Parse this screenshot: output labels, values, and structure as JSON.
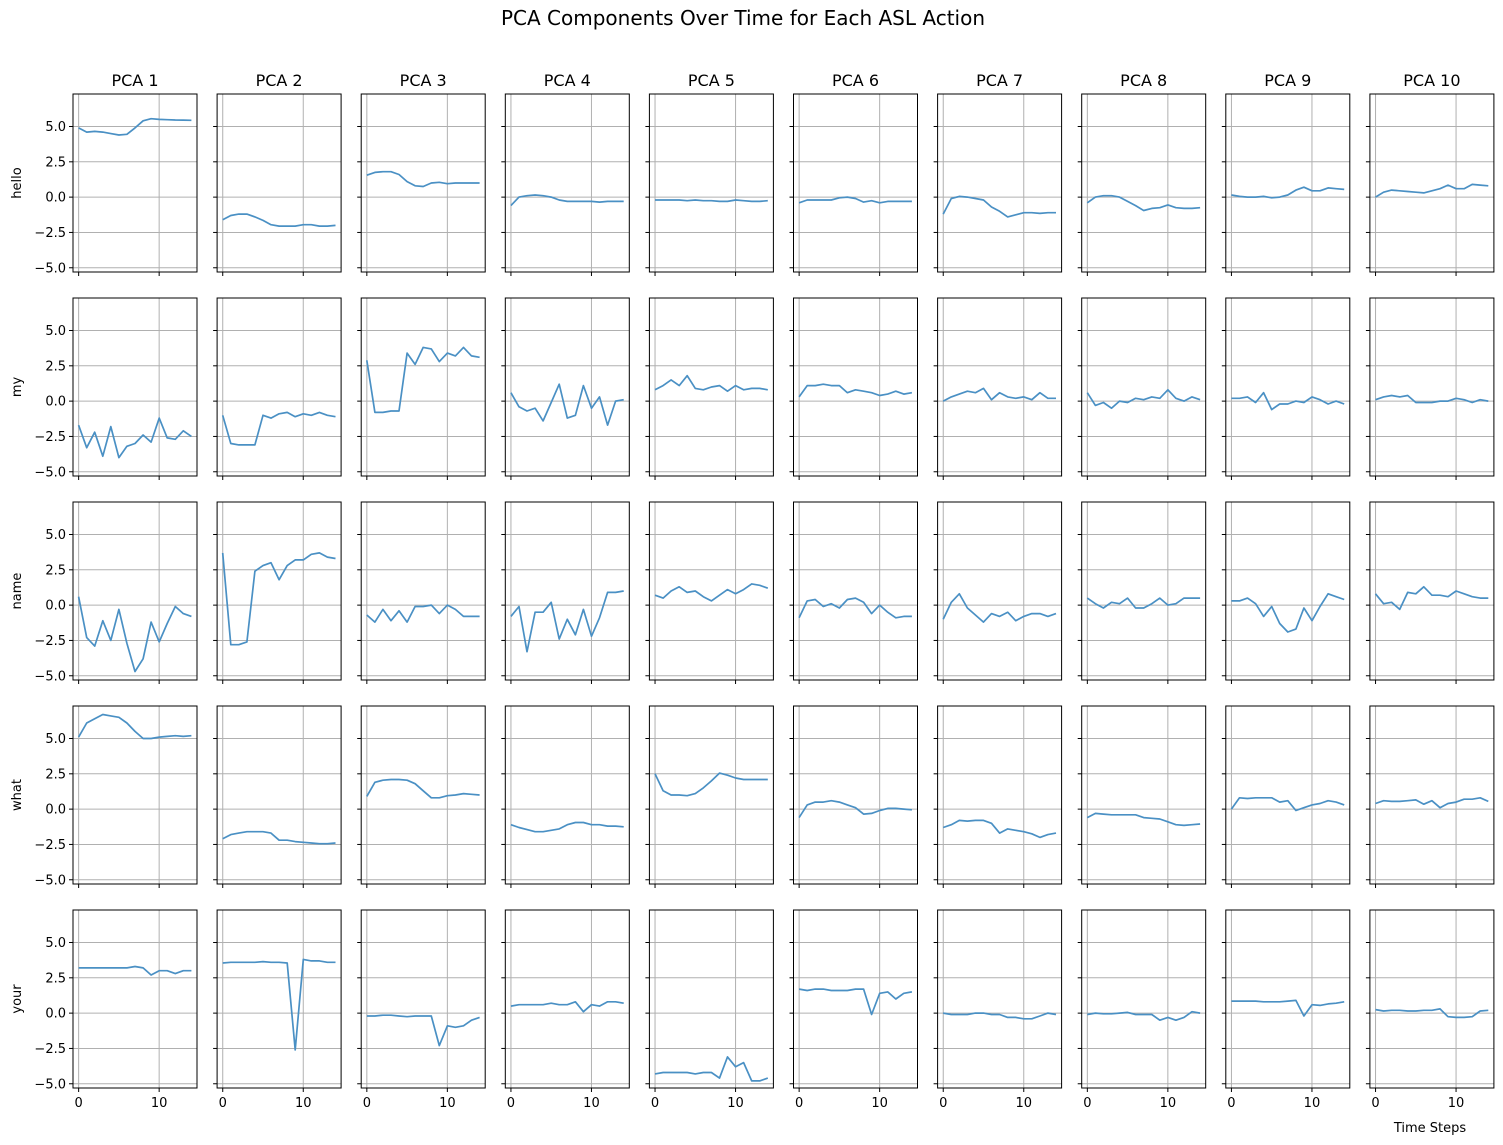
{
  "chart_data": {
    "type": "line",
    "title": "PCA Components Over Time for Each ASL Action",
    "xlabel": "Time Steps",
    "columns": [
      "PCA 1",
      "PCA 2",
      "PCA 3",
      "PCA 4",
      "PCA 5",
      "PCA 6",
      "PCA 7",
      "PCA 8",
      "PCA 9",
      "PCA 10"
    ],
    "rows": [
      "hello",
      "my",
      "name",
      "what",
      "your"
    ],
    "x": [
      0,
      1,
      2,
      3,
      4,
      5,
      6,
      7,
      8,
      9,
      10,
      11,
      12,
      13,
      14
    ],
    "xlim": [
      -0.7,
      14.7
    ],
    "ylim": [
      -5.3,
      7.3
    ],
    "xticks": [
      0,
      10
    ],
    "xtick_labels": [
      "0",
      "10"
    ],
    "yticks": [
      -5,
      -2.5,
      0,
      2.5,
      5
    ],
    "ytick_labels": [
      "−5.0",
      "−2.5",
      "0.0",
      "2.5",
      "5.0"
    ],
    "grid": true,
    "line_color": "#4a90c4",
    "values": {
      "hello": [
        [
          4.9,
          4.6,
          4.65,
          4.6,
          4.5,
          4.4,
          4.45,
          4.9,
          5.4,
          5.55,
          5.5,
          5.48,
          5.46,
          5.45,
          5.44
        ],
        [
          -1.6,
          -1.3,
          -1.2,
          -1.2,
          -1.4,
          -1.65,
          -1.95,
          -2.05,
          -2.05,
          -2.05,
          -1.95,
          -1.95,
          -2.05,
          -2.05,
          -2.0
        ],
        [
          1.55,
          1.75,
          1.8,
          1.8,
          1.6,
          1.1,
          0.8,
          0.75,
          1.0,
          1.05,
          0.95,
          1.0,
          1.0,
          1.0,
          1.0
        ],
        [
          -0.6,
          0.0,
          0.1,
          0.15,
          0.1,
          0.0,
          -0.2,
          -0.3,
          -0.3,
          -0.3,
          -0.3,
          -0.35,
          -0.3,
          -0.3,
          -0.3
        ],
        [
          -0.2,
          -0.2,
          -0.2,
          -0.2,
          -0.25,
          -0.2,
          -0.25,
          -0.25,
          -0.3,
          -0.3,
          -0.2,
          -0.25,
          -0.3,
          -0.3,
          -0.25
        ],
        [
          -0.4,
          -0.2,
          -0.2,
          -0.2,
          -0.2,
          -0.05,
          0.0,
          -0.1,
          -0.35,
          -0.25,
          -0.4,
          -0.3,
          -0.3,
          -0.3,
          -0.3
        ],
        [
          -1.2,
          -0.1,
          0.05,
          0.0,
          -0.1,
          -0.2,
          -0.7,
          -1.0,
          -1.4,
          -1.25,
          -1.1,
          -1.1,
          -1.15,
          -1.1,
          -1.1
        ],
        [
          -0.4,
          0.0,
          0.1,
          0.1,
          0.0,
          -0.3,
          -0.6,
          -0.95,
          -0.8,
          -0.75,
          -0.55,
          -0.75,
          -0.8,
          -0.8,
          -0.75
        ],
        [
          0.15,
          0.05,
          0.0,
          0.0,
          0.05,
          -0.05,
          0.0,
          0.15,
          0.5,
          0.7,
          0.45,
          0.45,
          0.65,
          0.6,
          0.55
        ],
        [
          0.0,
          0.35,
          0.5,
          0.45,
          0.4,
          0.35,
          0.3,
          0.45,
          0.6,
          0.85,
          0.6,
          0.6,
          0.9,
          0.85,
          0.8
        ]
      ],
      "my": [
        [
          -1.7,
          -3.3,
          -2.2,
          -3.9,
          -1.8,
          -4.0,
          -3.2,
          -3.0,
          -2.4,
          -2.9,
          -1.2,
          -2.6,
          -2.7,
          -2.1,
          -2.5
        ],
        [
          -1.0,
          -3.0,
          -3.1,
          -3.1,
          -3.1,
          -1.0,
          -1.2,
          -0.9,
          -0.8,
          -1.1,
          -0.9,
          -1.0,
          -0.8,
          -1.0,
          -1.1
        ],
        [
          2.9,
          -0.8,
          -0.8,
          -0.7,
          -0.7,
          3.4,
          2.6,
          3.8,
          3.7,
          2.8,
          3.4,
          3.2,
          3.8,
          3.2,
          3.1
        ],
        [
          0.6,
          -0.4,
          -0.7,
          -0.5,
          -1.4,
          -0.1,
          1.2,
          -1.2,
          -1.0,
          1.1,
          -0.5,
          0.3,
          -1.7,
          0.0,
          0.1
        ],
        [
          0.8,
          1.1,
          1.5,
          1.1,
          1.8,
          0.9,
          0.8,
          1.0,
          1.1,
          0.7,
          1.1,
          0.8,
          0.9,
          0.9,
          0.8
        ],
        [
          0.3,
          1.1,
          1.1,
          1.2,
          1.1,
          1.1,
          0.6,
          0.8,
          0.7,
          0.6,
          0.4,
          0.5,
          0.7,
          0.5,
          0.6
        ],
        [
          0.0,
          0.3,
          0.5,
          0.7,
          0.6,
          0.9,
          0.1,
          0.6,
          0.3,
          0.2,
          0.3,
          0.1,
          0.6,
          0.2,
          0.2
        ],
        [
          0.6,
          -0.3,
          -0.1,
          -0.5,
          0.0,
          -0.1,
          0.2,
          0.1,
          0.3,
          0.2,
          0.8,
          0.2,
          0.0,
          0.3,
          0.1
        ],
        [
          0.2,
          0.2,
          0.3,
          -0.1,
          0.6,
          -0.6,
          -0.2,
          -0.2,
          0.0,
          -0.1,
          0.3,
          0.1,
          -0.2,
          0.0,
          -0.2
        ],
        [
          0.1,
          0.3,
          0.4,
          0.3,
          0.4,
          -0.1,
          -0.1,
          -0.1,
          0.0,
          0.0,
          0.2,
          0.1,
          -0.1,
          0.1,
          0.0
        ]
      ],
      "name": [
        [
          0.6,
          -2.3,
          -2.9,
          -1.1,
          -2.5,
          -0.3,
          -2.7,
          -4.7,
          -3.8,
          -1.2,
          -2.6,
          -1.3,
          -0.1,
          -0.6,
          -0.8
        ],
        [
          3.7,
          -2.8,
          -2.8,
          -2.6,
          2.4,
          2.8,
          3.0,
          1.8,
          2.8,
          3.2,
          3.2,
          3.6,
          3.7,
          3.4,
          3.3
        ],
        [
          -0.7,
          -1.2,
          -0.3,
          -1.1,
          -0.4,
          -1.2,
          -0.1,
          -0.1,
          0.0,
          -0.6,
          0.0,
          -0.3,
          -0.8,
          -0.8,
          -0.8
        ],
        [
          -0.8,
          -0.1,
          -3.3,
          -0.5,
          -0.5,
          0.2,
          -2.4,
          -1.0,
          -2.1,
          -0.3,
          -2.2,
          -0.9,
          0.9,
          0.9,
          1.0
        ],
        [
          0.7,
          0.5,
          1.0,
          1.3,
          0.9,
          1.0,
          0.6,
          0.3,
          0.7,
          1.1,
          0.8,
          1.1,
          1.5,
          1.4,
          1.2
        ],
        [
          -0.9,
          0.3,
          0.4,
          -0.1,
          0.1,
          -0.2,
          0.4,
          0.5,
          0.2,
          -0.6,
          0.0,
          -0.5,
          -0.9,
          -0.8,
          -0.8
        ],
        [
          -1.0,
          0.2,
          0.8,
          -0.2,
          -0.7,
          -1.2,
          -0.6,
          -0.8,
          -0.5,
          -1.1,
          -0.8,
          -0.6,
          -0.6,
          -0.8,
          -0.6
        ],
        [
          0.5,
          0.1,
          -0.2,
          0.2,
          0.1,
          0.5,
          -0.2,
          -0.2,
          0.1,
          0.5,
          0.0,
          0.1,
          0.5,
          0.5,
          0.5
        ],
        [
          0.3,
          0.3,
          0.5,
          0.1,
          -0.8,
          -0.1,
          -1.3,
          -1.9,
          -1.7,
          -0.2,
          -1.1,
          -0.1,
          0.8,
          0.6,
          0.4
        ],
        [
          0.8,
          0.1,
          0.2,
          -0.3,
          0.9,
          0.8,
          1.3,
          0.7,
          0.7,
          0.6,
          1.0,
          0.8,
          0.6,
          0.5,
          0.5
        ]
      ],
      "what": [
        [
          5.1,
          6.1,
          6.4,
          6.7,
          6.6,
          6.5,
          6.1,
          5.5,
          5.0,
          5.0,
          5.1,
          5.15,
          5.2,
          5.15,
          5.2
        ],
        [
          -2.1,
          -1.8,
          -1.7,
          -1.6,
          -1.6,
          -1.6,
          -1.7,
          -2.2,
          -2.2,
          -2.3,
          -2.35,
          -2.4,
          -2.45,
          -2.45,
          -2.4
        ],
        [
          0.9,
          1.9,
          2.05,
          2.1,
          2.1,
          2.05,
          1.8,
          1.3,
          0.8,
          0.8,
          0.95,
          1.0,
          1.1,
          1.05,
          1.0
        ],
        [
          -1.1,
          -1.3,
          -1.45,
          -1.6,
          -1.6,
          -1.5,
          -1.4,
          -1.1,
          -0.95,
          -0.95,
          -1.1,
          -1.1,
          -1.2,
          -1.2,
          -1.25
        ],
        [
          2.5,
          1.3,
          1.0,
          1.0,
          0.95,
          1.1,
          1.5,
          2.0,
          2.55,
          2.4,
          2.2,
          2.1,
          2.1,
          2.1,
          2.1
        ],
        [
          -0.6,
          0.3,
          0.5,
          0.5,
          0.6,
          0.5,
          0.3,
          0.1,
          -0.35,
          -0.3,
          -0.1,
          0.05,
          0.05,
          0.0,
          -0.05
        ],
        [
          -1.3,
          -1.1,
          -0.8,
          -0.85,
          -0.8,
          -0.8,
          -1.0,
          -1.7,
          -1.4,
          -1.5,
          -1.6,
          -1.75,
          -2.0,
          -1.8,
          -1.7
        ],
        [
          -0.6,
          -0.3,
          -0.35,
          -0.4,
          -0.4,
          -0.4,
          -0.4,
          -0.6,
          -0.65,
          -0.7,
          -0.9,
          -1.1,
          -1.15,
          -1.1,
          -1.05
        ],
        [
          0.0,
          0.8,
          0.75,
          0.8,
          0.8,
          0.8,
          0.5,
          0.6,
          -0.1,
          0.1,
          0.3,
          0.4,
          0.6,
          0.5,
          0.3
        ],
        [
          0.4,
          0.6,
          0.55,
          0.55,
          0.6,
          0.65,
          0.35,
          0.6,
          0.1,
          0.4,
          0.5,
          0.7,
          0.7,
          0.8,
          0.55
        ]
      ],
      "your": [
        [
          3.2,
          3.2,
          3.2,
          3.2,
          3.2,
          3.2,
          3.2,
          3.3,
          3.2,
          2.7,
          3.0,
          3.0,
          2.8,
          3.0,
          3.0
        ],
        [
          3.55,
          3.6,
          3.6,
          3.6,
          3.6,
          3.65,
          3.6,
          3.6,
          3.55,
          -2.6,
          3.8,
          3.7,
          3.7,
          3.6,
          3.6
        ],
        [
          -0.2,
          -0.2,
          -0.15,
          -0.15,
          -0.2,
          -0.25,
          -0.2,
          -0.2,
          -0.2,
          -2.3,
          -0.9,
          -1.0,
          -0.9,
          -0.5,
          -0.3
        ],
        [
          0.5,
          0.6,
          0.6,
          0.6,
          0.6,
          0.7,
          0.6,
          0.6,
          0.8,
          0.1,
          0.6,
          0.5,
          0.8,
          0.8,
          0.7
        ],
        [
          -4.3,
          -4.2,
          -4.2,
          -4.2,
          -4.2,
          -4.3,
          -4.2,
          -4.2,
          -4.6,
          -3.1,
          -3.8,
          -3.5,
          -4.8,
          -4.8,
          -4.6
        ],
        [
          1.7,
          1.6,
          1.7,
          1.7,
          1.6,
          1.6,
          1.6,
          1.7,
          1.7,
          -0.1,
          1.4,
          1.5,
          1.0,
          1.4,
          1.5
        ],
        [
          0.0,
          -0.1,
          -0.1,
          -0.1,
          0.0,
          0.0,
          -0.1,
          -0.1,
          -0.3,
          -0.3,
          -0.4,
          -0.4,
          -0.2,
          0.0,
          -0.1
        ],
        [
          -0.1,
          0.0,
          -0.05,
          -0.05,
          0.0,
          0.05,
          -0.1,
          -0.1,
          -0.1,
          -0.5,
          -0.3,
          -0.5,
          -0.3,
          0.1,
          0.0
        ],
        [
          0.85,
          0.85,
          0.85,
          0.85,
          0.8,
          0.8,
          0.8,
          0.85,
          0.9,
          -0.2,
          0.6,
          0.55,
          0.65,
          0.7,
          0.8
        ],
        [
          0.25,
          0.15,
          0.2,
          0.2,
          0.15,
          0.15,
          0.2,
          0.2,
          0.3,
          -0.25,
          -0.3,
          -0.3,
          -0.25,
          0.15,
          0.2
        ]
      ]
    }
  }
}
